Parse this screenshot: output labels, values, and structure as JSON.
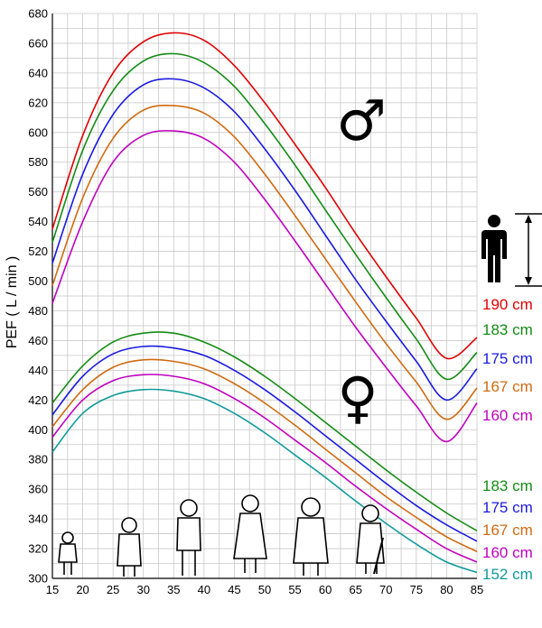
{
  "chart_data": {
    "type": "line",
    "ylabel": "PEF ( L / min )",
    "xlim": [
      15,
      85
    ],
    "ylim": [
      300,
      680
    ],
    "x_ticks": [
      15,
      20,
      25,
      30,
      35,
      40,
      45,
      50,
      55,
      60,
      65,
      70,
      75,
      80,
      85
    ],
    "y_ticks": [
      300,
      320,
      340,
      360,
      380,
      400,
      420,
      440,
      460,
      480,
      500,
      520,
      540,
      560,
      580,
      600,
      620,
      640,
      660,
      680
    ],
    "grid": true,
    "x": [
      15,
      20,
      25,
      30,
      35,
      40,
      45,
      50,
      55,
      60,
      65,
      70,
      75,
      80,
      85
    ],
    "male": {
      "symbol": "♂",
      "series": [
        {
          "name": "190 cm",
          "color": "#e00000",
          "values": [
            535,
            598,
            640,
            661,
            667,
            662,
            645,
            620,
            592,
            563,
            532,
            503,
            475,
            448,
            462
          ]
        },
        {
          "name": "183 cm",
          "color": "#148c14",
          "values": [
            526,
            588,
            628,
            648,
            653,
            647,
            631,
            606,
            578,
            548,
            518,
            489,
            461,
            434,
            452
          ]
        },
        {
          "name": "175 cm",
          "color": "#1a1ae0",
          "values": [
            512,
            572,
            612,
            632,
            636,
            630,
            614,
            589,
            561,
            531,
            501,
            473,
            446,
            420,
            441
          ]
        },
        {
          "name": "167 cm",
          "color": "#d06a10",
          "values": [
            497,
            556,
            596,
            615,
            618,
            613,
            597,
            572,
            544,
            515,
            486,
            458,
            432,
            407,
            428
          ]
        },
        {
          "name": "160 cm",
          "color": "#c000c0",
          "values": [
            485,
            540,
            580,
            598,
            601,
            596,
            580,
            555,
            527,
            498,
            469,
            442,
            416,
            392,
            418
          ]
        }
      ]
    },
    "female": {
      "symbol": "♀",
      "series": [
        {
          "name": "183 cm",
          "color": "#148c14",
          "values": [
            418,
            443,
            459,
            465,
            465,
            459,
            449,
            436,
            421,
            405,
            389,
            373,
            358,
            344,
            332
          ]
        },
        {
          "name": "175 cm",
          "color": "#1a1ae0",
          "values": [
            410,
            436,
            451,
            456,
            455,
            450,
            440,
            427,
            412,
            396,
            380,
            364,
            349,
            336,
            325
          ]
        },
        {
          "name": "167 cm",
          "color": "#d06a10",
          "values": [
            402,
            427,
            442,
            447,
            446,
            441,
            431,
            418,
            403,
            387,
            371,
            355,
            341,
            328,
            318
          ]
        },
        {
          "name": "160 cm",
          "color": "#c000c0",
          "values": [
            395,
            420,
            433,
            437,
            436,
            431,
            421,
            408,
            393,
            378,
            362,
            347,
            333,
            320,
            311
          ]
        },
        {
          "name": "152 cm",
          "color": "#109a9a",
          "values": [
            385,
            411,
            423,
            427,
            426,
            421,
            411,
            398,
            383,
            368,
            352,
            337,
            323,
            311,
            304
          ]
        }
      ]
    }
  }
}
